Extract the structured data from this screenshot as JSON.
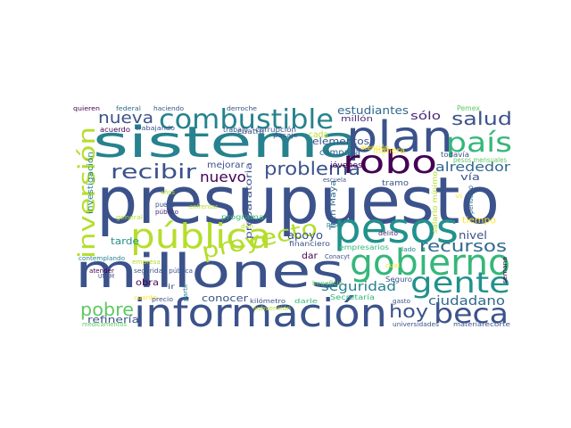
{
  "words": [
    {
      "text": "presupuesto",
      "color": "#3b528b"
    },
    {
      "text": "millones",
      "color": "#3b528b"
    },
    {
      "text": "sistema",
      "color": "#26828e"
    },
    {
      "text": "información",
      "color": "#3b528b"
    },
    {
      "text": "plan",
      "color": "#3b528b"
    },
    {
      "text": "pública",
      "color": "#b5de2b"
    },
    {
      "text": "pesos",
      "color": "#21918c"
    },
    {
      "text": "gobierno",
      "color": "#35b779"
    },
    {
      "text": "combustible",
      "color": "#26828e"
    },
    {
      "text": "robo",
      "color": "#440154"
    },
    {
      "text": "país",
      "color": "#35b779"
    },
    {
      "text": "beca",
      "color": "#3b528b"
    },
    {
      "text": "gente",
      "color": "#21918c"
    },
    {
      "text": "inversión",
      "color": "#b5de2b"
    },
    {
      "text": "proyecto",
      "color": "#b5de2b"
    },
    {
      "text": "recibir",
      "color": "#3b528b"
    },
    {
      "text": "problema",
      "color": "#3b528b"
    },
    {
      "text": "nueva",
      "color": "#3b528b"
    },
    {
      "text": "salud",
      "color": "#3b528b"
    },
    {
      "text": "pobre",
      "color": "#5ec962"
    },
    {
      "text": "hoy",
      "color": "#3b528b"
    },
    {
      "text": "recursos",
      "color": "#31688e"
    },
    {
      "text": "nuevo",
      "color": "#440154"
    },
    {
      "text": "alrededor",
      "color": "#31688e"
    },
    {
      "text": "ciudadano",
      "color": "#31688e"
    },
    {
      "text": "seguridad",
      "color": "#26828e"
    },
    {
      "text": "estudiantes",
      "color": "#31688e"
    },
    {
      "text": "sólo",
      "color": "#482878"
    },
    {
      "text": "elementos",
      "color": "#3b528b"
    },
    {
      "text": "apoyo",
      "color": "#3b528b"
    },
    {
      "text": "nivel",
      "color": "#3b528b"
    },
    {
      "text": "refinería",
      "color": "#3b528b"
    },
    {
      "text": "conocer",
      "color": "#3b528b"
    },
    {
      "text": "tarde",
      "color": "#21918c"
    },
    {
      "text": "vía",
      "color": "#3b528b"
    },
    {
      "text": "cada",
      "color": "#b5de2b"
    },
    {
      "text": "campaña",
      "color": "#31688e"
    },
    {
      "text": "mejorar",
      "color": "#3b528b"
    },
    {
      "text": "obra",
      "color": "#440154"
    },
    {
      "text": "dar",
      "color": "#440154"
    },
    {
      "text": "tiempo",
      "color": "#fde725"
    },
    {
      "text": "preparatoria",
      "color": "#3b528b"
    },
    {
      "text": "investigación",
      "color": "#26828e"
    },
    {
      "text": "Tren Maya",
      "color": "#31688e"
    },
    {
      "text": "millón",
      "color": "#482878"
    },
    {
      "text": "manera",
      "color": "#fde725"
    },
    {
      "text": "jóvenes",
      "color": "#440154"
    },
    {
      "text": "tramo",
      "color": "#3b528b"
    },
    {
      "text": "todavía",
      "color": "#3b528b"
    },
    {
      "text": "programa",
      "color": "#35b779"
    },
    {
      "text": "Secretaría",
      "color": "#35b779"
    },
    {
      "text": "financiero",
      "color": "#3b528b"
    },
    {
      "text": "Seguro",
      "color": "#3b528b"
    },
    {
      "text": "acuerdo",
      "color": "#440154"
    },
    {
      "text": "trabajo",
      "color": "#3b528b"
    },
    {
      "text": "cuatro",
      "color": "#3b528b"
    },
    {
      "text": "corrupción",
      "color": "#3b528b"
    },
    {
      "text": "empresarios",
      "color": "#35b779"
    },
    {
      "text": "Pemex",
      "color": "#5ec962"
    },
    {
      "text": "pesos mensuales",
      "color": "#5ec962"
    },
    {
      "text": "periódico",
      "color": "#31688e"
    },
    {
      "text": "salario mínimo",
      "color": "#b5de2b"
    },
    {
      "text": "escuela",
      "color": "#3b528b"
    },
    {
      "text": "atención",
      "color": "#fde725"
    },
    {
      "text": "puedo",
      "color": "#3b528b"
    },
    {
      "text": "enfrentar",
      "color": "#b5de2b"
    },
    {
      "text": "años",
      "color": "#b5de2b"
    },
    {
      "text": "público",
      "color": "#482878"
    },
    {
      "text": "general",
      "color": "#b5de2b"
    },
    {
      "text": "seguridad pública",
      "color": "#3b528b"
    },
    {
      "text": "UNAM",
      "color": "#3b528b"
    },
    {
      "text": "atender",
      "color": "#440154"
    },
    {
      "text": "contemplando",
      "color": "#26828e"
    },
    {
      "text": "empresa",
      "color": "#b5de2b"
    },
    {
      "text": "cuanto",
      "color": "#fde725"
    },
    {
      "text": "ir",
      "color": "#3b528b"
    },
    {
      "text": "partir",
      "color": "#26828e"
    },
    {
      "text": "precio",
      "color": "#3b528b"
    },
    {
      "text": "kilómetro",
      "color": "#3b528b"
    },
    {
      "text": "darle",
      "color": "#35b779"
    },
    {
      "text": "beneficio",
      "color": "#5ec962"
    },
    {
      "text": "subvención",
      "color": "#b5de2b"
    },
    {
      "text": "poder",
      "color": "#26828e"
    },
    {
      "text": "delito",
      "color": "#482878"
    },
    {
      "text": "lado",
      "color": "#26828e"
    },
    {
      "text": "Conacyt",
      "color": "#3b528b"
    },
    {
      "text": "gasto",
      "color": "#3b528b"
    },
    {
      "text": "universidades",
      "color": "#3b528b"
    },
    {
      "text": "materia",
      "color": "#3b528b"
    },
    {
      "text": "recorte",
      "color": "#3b528b"
    },
    {
      "text": "semana",
      "color": "#440154"
    },
    {
      "text": "medicamentos",
      "color": "#5ec962"
    },
    {
      "text": "quieren",
      "color": "#440154"
    },
    {
      "text": "federal",
      "color": "#31688e"
    },
    {
      "text": "haciendo",
      "color": "#3b528b"
    },
    {
      "text": "derroche",
      "color": "#3b528b"
    },
    {
      "text": "trabajando",
      "color": "#3b528b"
    },
    {
      "text": "pasaje",
      "color": "#3b528b"
    },
    {
      "text": "cual",
      "color": "#fde725"
    },
    {
      "text": "vi",
      "color": "#fde725"
    },
    {
      "text": "dan",
      "color": "#b5de2b"
    }
  ]
}
